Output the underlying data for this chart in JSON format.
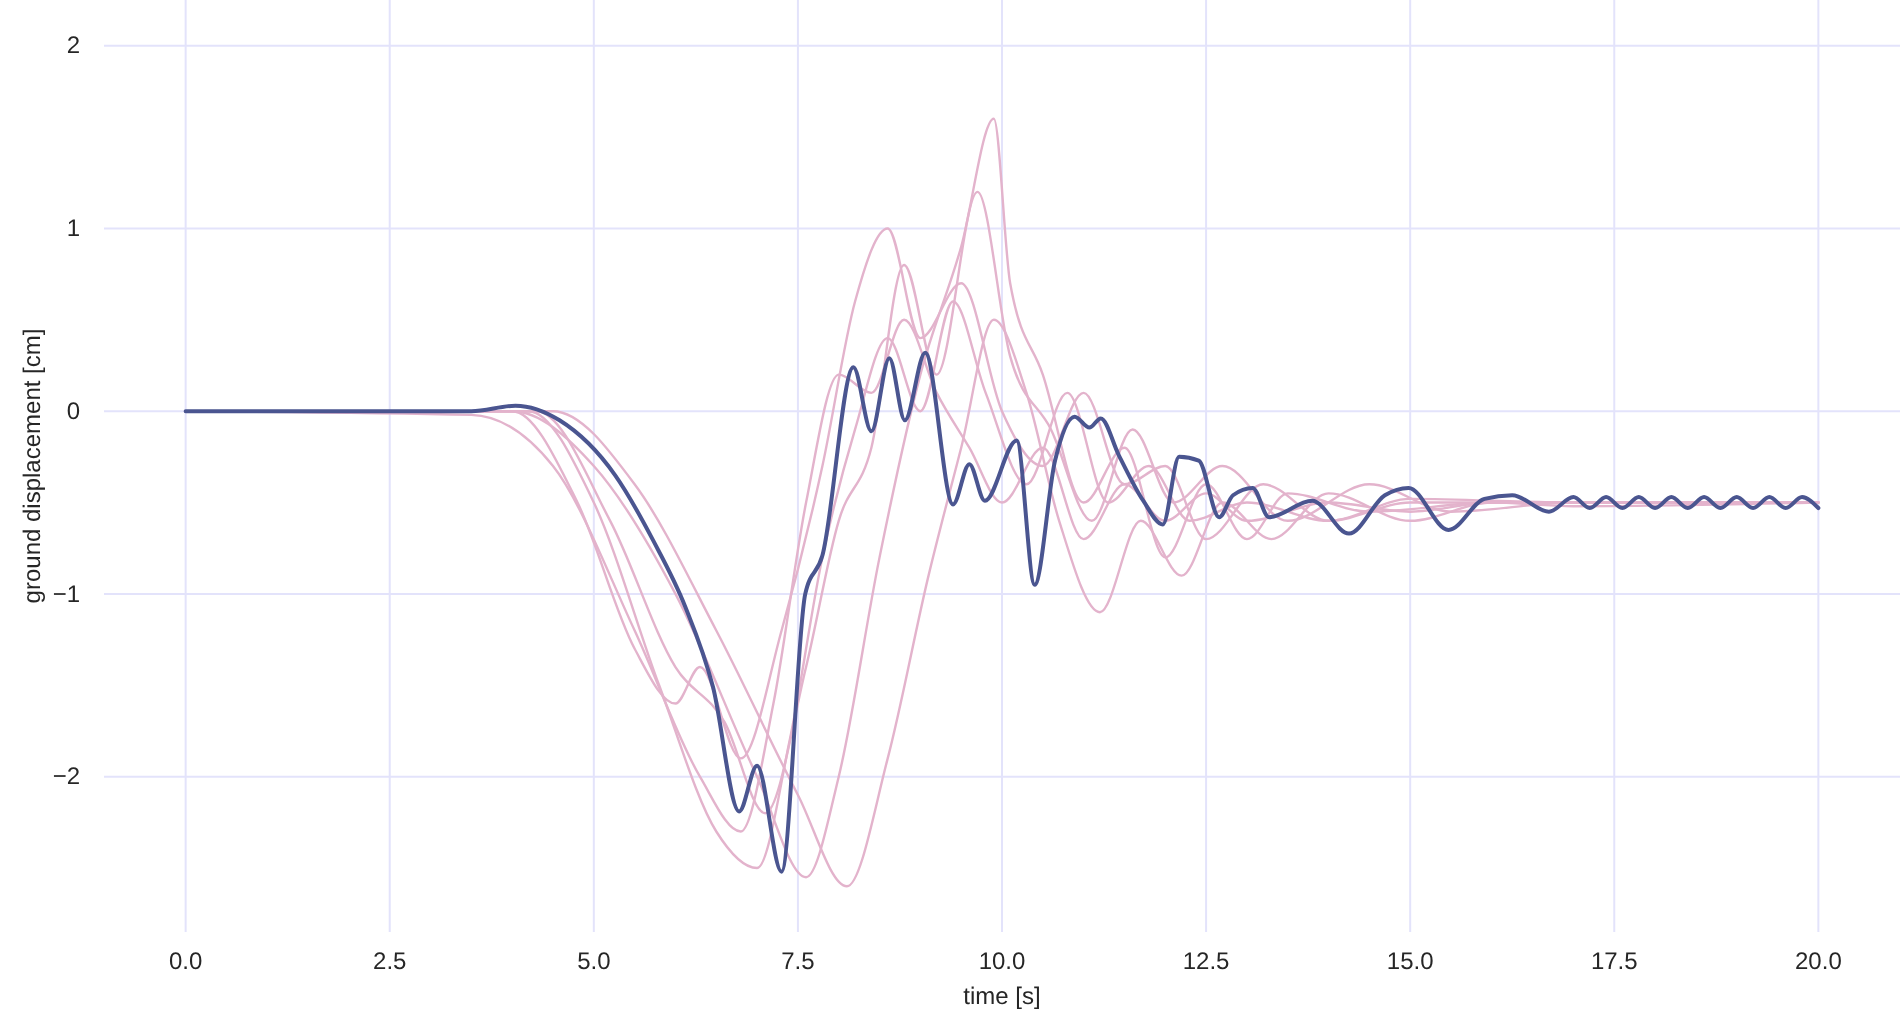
{
  "chart_data": {
    "type": "line",
    "xlabel": "time [s]",
    "ylabel": "ground displacement [cm]",
    "xlim": [
      -1,
      21
    ],
    "ylim": [
      -2.85,
      2.25
    ],
    "xticks": [
      {
        "value": 0,
        "label": "0.0"
      },
      {
        "value": 2.5,
        "label": "2.5"
      },
      {
        "value": 5,
        "label": "5.0"
      },
      {
        "value": 7.5,
        "label": "7.5"
      },
      {
        "value": 10,
        "label": "10.0"
      },
      {
        "value": 12.5,
        "label": "12.5"
      },
      {
        "value": 15,
        "label": "15.0"
      },
      {
        "value": 17.5,
        "label": "17.5"
      },
      {
        "value": 20,
        "label": "20.0"
      }
    ],
    "yticks": [
      {
        "value": -2,
        "label": "−2"
      },
      {
        "value": -1,
        "label": "−1"
      },
      0,
      1,
      2
    ],
    "grid": true,
    "line_style": "solid",
    "marker": "none",
    "series": [
      {
        "color": "#e3b3cc",
        "x": [
          0,
          3.5,
          4.5,
          5.5,
          6.3,
          6.8,
          7.2,
          7.6,
          8.0,
          8.4,
          8.8,
          9.2,
          9.6,
          10.0,
          10.5,
          11,
          11.5,
          12,
          12.5,
          13,
          14,
          15,
          16,
          17,
          20
        ],
        "values": [
          0,
          -0.02,
          -0.3,
          -1.2,
          -2.0,
          -2.3,
          -1.6,
          -0.5,
          0.2,
          0.1,
          0.5,
          0.1,
          -0.2,
          -0.5,
          -0.2,
          -0.7,
          -0.4,
          -0.6,
          -0.45,
          -0.6,
          -0.5,
          -0.55,
          -0.5,
          -0.52,
          -0.5
        ]
      },
      {
        "color": "#e3b3cc",
        "x": [
          0,
          4,
          5,
          6,
          7,
          7.6,
          8.0,
          8.5,
          9.0,
          9.5,
          9.9,
          10.1,
          10.5,
          11,
          11.5,
          12,
          12.5,
          13,
          13.5,
          14.5,
          16,
          20
        ],
        "values": [
          0,
          0,
          -0.3,
          -1.0,
          -2.0,
          -2.55,
          -2.0,
          -0.8,
          0.2,
          0.9,
          1.6,
          0.7,
          0.2,
          -0.5,
          -0.2,
          -0.8,
          -0.4,
          -0.7,
          -0.45,
          -0.55,
          -0.5,
          -0.5
        ]
      },
      {
        "color": "#e3b3cc",
        "x": [
          0,
          4.2,
          5.0,
          5.8,
          6.5,
          7.0,
          7.4,
          7.8,
          8.2,
          8.6,
          9.0,
          9.4,
          9.8,
          10.3,
          10.8,
          11.3,
          11.8,
          12.3,
          13,
          14,
          15,
          17,
          20
        ],
        "values": [
          0,
          0,
          -0.5,
          -1.5,
          -2.3,
          -2.5,
          -1.8,
          -0.8,
          -0.1,
          0.4,
          0.0,
          0.6,
          0.1,
          -0.4,
          0.1,
          -0.5,
          -0.3,
          -0.6,
          -0.5,
          -0.6,
          -0.48,
          -0.5,
          -0.5
        ]
      },
      {
        "color": "#e3b3cc",
        "x": [
          0,
          4.5,
          5.5,
          6.5,
          7.5,
          8.1,
          8.6,
          9.1,
          9.5,
          9.9,
          10.3,
          10.7,
          11.2,
          11.7,
          12.2,
          12.7,
          13.3,
          14,
          15,
          16,
          20
        ],
        "values": [
          0,
          0,
          -0.4,
          -1.2,
          -2.1,
          -2.6,
          -1.9,
          -0.9,
          -0.2,
          0.5,
          0.1,
          -0.6,
          -1.1,
          -0.6,
          -0.9,
          -0.5,
          -0.7,
          -0.45,
          -0.6,
          -0.5,
          -0.5
        ]
      },
      {
        "color": "#e3b3cc",
        "x": [
          0,
          4,
          4.8,
          5.5,
          6.0,
          6.3,
          6.8,
          7.3,
          7.8,
          8.2,
          8.6,
          9.0,
          9.5,
          10,
          10.5,
          11,
          11.5,
          12,
          12.5,
          13.2,
          14,
          15,
          20
        ],
        "values": [
          0,
          0,
          -0.5,
          -1.3,
          -1.6,
          -1.4,
          -1.9,
          -1.2,
          -0.3,
          0.6,
          1.0,
          0.4,
          0.7,
          0.0,
          -0.3,
          0.1,
          -0.4,
          -0.3,
          -0.7,
          -0.4,
          -0.6,
          -0.5,
          -0.5
        ]
      },
      {
        "color": "#e3b3cc",
        "x": [
          0,
          4.3,
          5.2,
          6.0,
          6.6,
          7.1,
          7.6,
          8.0,
          8.4,
          8.8,
          9.2,
          9.7,
          10.1,
          10.6,
          11.1,
          11.6,
          12.1,
          12.7,
          13.5,
          14.5,
          15.5,
          17,
          20
        ],
        "values": [
          0,
          0,
          -0.6,
          -1.4,
          -1.7,
          -2.2,
          -1.4,
          -0.6,
          -0.2,
          0.8,
          0.2,
          1.2,
          0.3,
          -0.1,
          -0.6,
          -0.1,
          -0.5,
          -0.3,
          -0.6,
          -0.4,
          -0.55,
          -0.5,
          -0.5
        ]
      },
      {
        "color": "#4a5590",
        "x": [
          0,
          3.5,
          4.04,
          4.58,
          5.26,
          5.73,
          6.12,
          6.46,
          6.78,
          7.0,
          7.3,
          7.59,
          7.8,
          8.18,
          8.4,
          8.62,
          8.81,
          9.06,
          9.4,
          9.6,
          9.79,
          10.18,
          10.4,
          10.65,
          10.89,
          11.07,
          11.21,
          11.43,
          11.73,
          11.97,
          12.17,
          12.41,
          12.66,
          12.83,
          13.07,
          13.27,
          13.8,
          14.25,
          14.69,
          14.98,
          15.47,
          15.91,
          16.25,
          16.7,
          17.0,
          17.2,
          17.4,
          17.6,
          17.8,
          18.0,
          18.2,
          18.4,
          18.6,
          18.8,
          19.0,
          19.2,
          19.4,
          19.6,
          19.8,
          20.0
        ],
        "values": [
          0,
          0,
          0.03,
          -0.05,
          -0.35,
          -0.71,
          -1.07,
          -1.51,
          -2.19,
          -1.94,
          -2.52,
          -1.0,
          -0.79,
          0.24,
          -0.11,
          0.29,
          -0.05,
          0.32,
          -0.51,
          -0.29,
          -0.49,
          -0.16,
          -0.95,
          -0.27,
          -0.03,
          -0.09,
          -0.04,
          -0.24,
          -0.49,
          -0.62,
          -0.25,
          -0.27,
          -0.58,
          -0.46,
          -0.42,
          -0.58,
          -0.49,
          -0.67,
          -0.46,
          -0.42,
          -0.65,
          -0.48,
          -0.46,
          -0.55,
          -0.47,
          -0.53,
          -0.47,
          -0.53,
          -0.47,
          -0.53,
          -0.47,
          -0.53,
          -0.47,
          -0.53,
          -0.47,
          -0.53,
          -0.47,
          -0.53,
          -0.47,
          -0.53
        ]
      }
    ]
  }
}
